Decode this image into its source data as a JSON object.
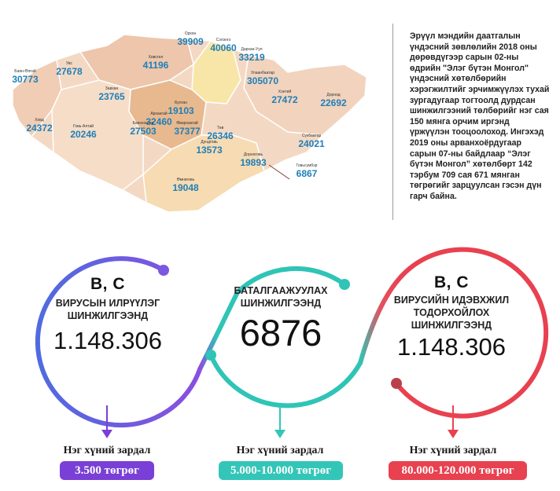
{
  "map": {
    "regions": [
      {
        "name": "Баян-Өлгий",
        "value": "30773"
      },
      {
        "name": "Увс",
        "value": "27678"
      },
      {
        "name": "Хөвсгөл",
        "value": "41196"
      },
      {
        "name": "Орхон",
        "value": "39909"
      },
      {
        "name": "Сэлэнгэ",
        "value": "40060"
      },
      {
        "name": "Дархан-Уул",
        "value": "33219"
      },
      {
        "name": "Улаанбаатар",
        "value": "305070"
      },
      {
        "name": "Завхан",
        "value": "23765"
      },
      {
        "name": "Булган",
        "value": "19103"
      },
      {
        "name": "Архангай",
        "value": "32460"
      },
      {
        "name": "Хэнтий",
        "value": "27472"
      },
      {
        "name": "Дорнод",
        "value": "22692"
      },
      {
        "name": "Ховд",
        "value": "24372"
      },
      {
        "name": "Говь-Алтай",
        "value": "20246"
      },
      {
        "name": "Баянхонгор",
        "value": "27503"
      },
      {
        "name": "Өвөрхангай",
        "value": "37377"
      },
      {
        "name": "Төв",
        "value": "26346"
      },
      {
        "name": "Сүхбаатар",
        "value": "24021"
      },
      {
        "name": "Дундговь",
        "value": "13573"
      },
      {
        "name": "Дорноговь",
        "value": "19893"
      },
      {
        "name": "Говьсүмбэр",
        "value": "6867"
      },
      {
        "name": "Өмнөговь",
        "value": "19048"
      }
    ]
  },
  "description": "Эрүүл мэндийн даатгалын үндэсний зөвлөлийн 2018 оны дөрөвдүгээр сарын 02-ны өдрийн \"Элэг бүтэн Монгол\" үндэсний хөтөлбөрийн хэрэгжилтийг эрчимжүүлэх тухай зургадугаар тогтоолд дурдсан шинжилгээний төлбөрийг нэг сая 150 мянга орчим иргэнд үржүүлэн тооцоолоход. Ингэхэд 2019 оны арванхоёрдугаар сарын 07-ны байдлаар “Элэг бүтэн Монгол” хөтөлбөрт 142 тэрбум 709 сая 671 мянган төгрөгийг зарцуулсан гэсэн дүн гарч байна.",
  "circles": [
    {
      "heading": "B, C",
      "label_1": "ВИРУСЫН ИЛРҮҮЛЭГ",
      "label_2": "ШИНЖИЛГЭЭНД",
      "value": "1.148.306"
    },
    {
      "label_1": "БАТАЛГААЖУУЛАХ",
      "label_2": "ШИНЖИЛГЭЭНД",
      "value": "6876"
    },
    {
      "heading": "B, C",
      "label_1": "ВИРУСИЙН ИДЭВХЖИЛ",
      "label_2": "ТОДОРХОЙЛОХ",
      "label_3": "ШИНЖИЛГЭЭНД",
      "value": "1.148.306"
    }
  ],
  "costs": [
    {
      "label": "Нэг хүний зардал",
      "amount": "3.500 төгрөг",
      "color": "#7a3fd6"
    },
    {
      "label": "Нэг хүний зардал",
      "amount": "5.000-10.000 төгрөг",
      "color": "#33c6b8"
    },
    {
      "label": "Нэг хүний зардал",
      "amount": "80.000-120.000 төгрөг",
      "color": "#e8414f"
    }
  ]
}
